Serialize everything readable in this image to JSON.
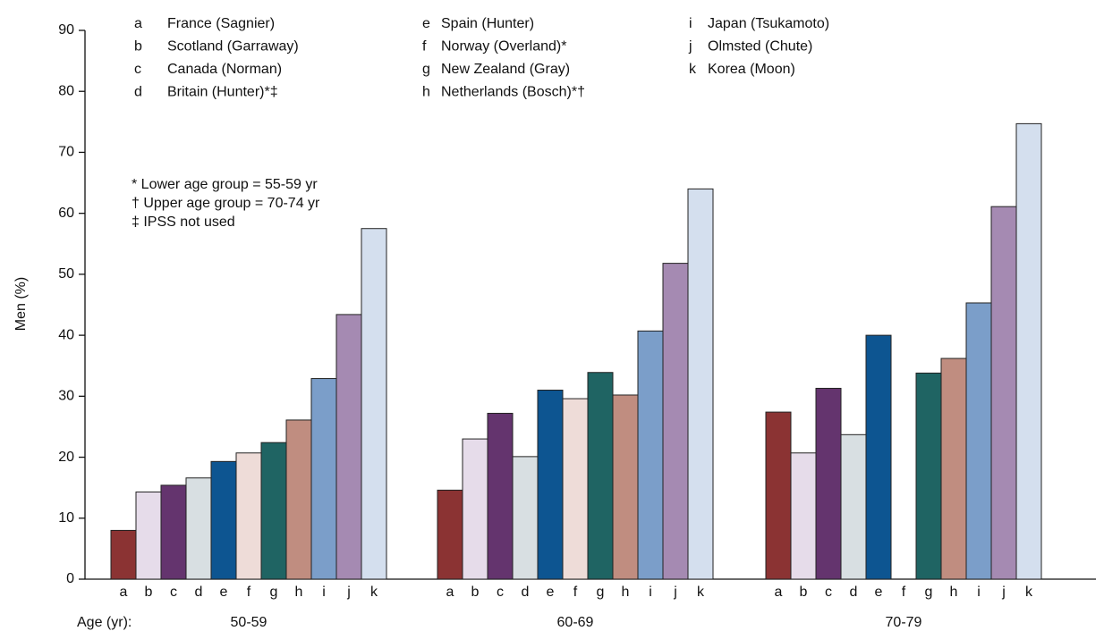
{
  "chart_data": {
    "type": "bar",
    "y_label": "Men (%)",
    "x_label": "Age (yr):",
    "categories": [
      "50-59",
      "60-69",
      "70-79"
    ],
    "series": [
      {
        "letter": "a",
        "name": "France (Sagnier)",
        "color": "#8b3333",
        "values": [
          8,
          14.6,
          27.4
        ]
      },
      {
        "letter": "b",
        "name": "Scotland (Garraway)",
        "color": "#e6dcea",
        "values": [
          14.3,
          23,
          20.7
        ]
      },
      {
        "letter": "c",
        "name": "Canada (Norman)",
        "color": "#64346e",
        "values": [
          15.4,
          27.2,
          31.3
        ]
      },
      {
        "letter": "d",
        "name": "Britain (Hunter)*‡",
        "color": "#d8dfe2",
        "values": [
          16.6,
          20.1,
          23.7
        ]
      },
      {
        "letter": "e",
        "name": "Spain (Hunter)",
        "color": "#0d5591",
        "values": [
          19.3,
          31,
          40
        ]
      },
      {
        "letter": "f",
        "name": "Norway (Overland)*",
        "color": "#eedcd8",
        "values": [
          20.7,
          29.6,
          null
        ]
      },
      {
        "letter": "g",
        "name": "New Zealand (Gray)",
        "color": "#1f6463",
        "values": [
          22.4,
          33.9,
          33.8
        ]
      },
      {
        "letter": "h",
        "name": "Netherlands (Bosch)*†",
        "color": "#c08d80",
        "values": [
          26.1,
          30.2,
          36.2
        ]
      },
      {
        "letter": "i",
        "name": "Japan (Tsukamoto)",
        "color": "#7b9ec9",
        "values": [
          32.9,
          40.7,
          45.3
        ]
      },
      {
        "letter": "j",
        "name": "Olmsted (Chute)",
        "color": "#a58ab2",
        "values": [
          43.4,
          51.8,
          61.1
        ]
      },
      {
        "letter": "k",
        "name": "Korea (Moon)",
        "color": "#d4dfee",
        "values": [
          57.5,
          64,
          74.7
        ]
      }
    ],
    "notes": [
      "* Lower age group = 55-59 yr",
      "† Upper age group = 70-74 yr",
      "‡ IPSS not used"
    ],
    "ylim": [
      0,
      90
    ],
    "yticks": [
      0,
      10,
      20,
      30,
      40,
      50,
      60,
      70,
      80,
      90
    ]
  }
}
